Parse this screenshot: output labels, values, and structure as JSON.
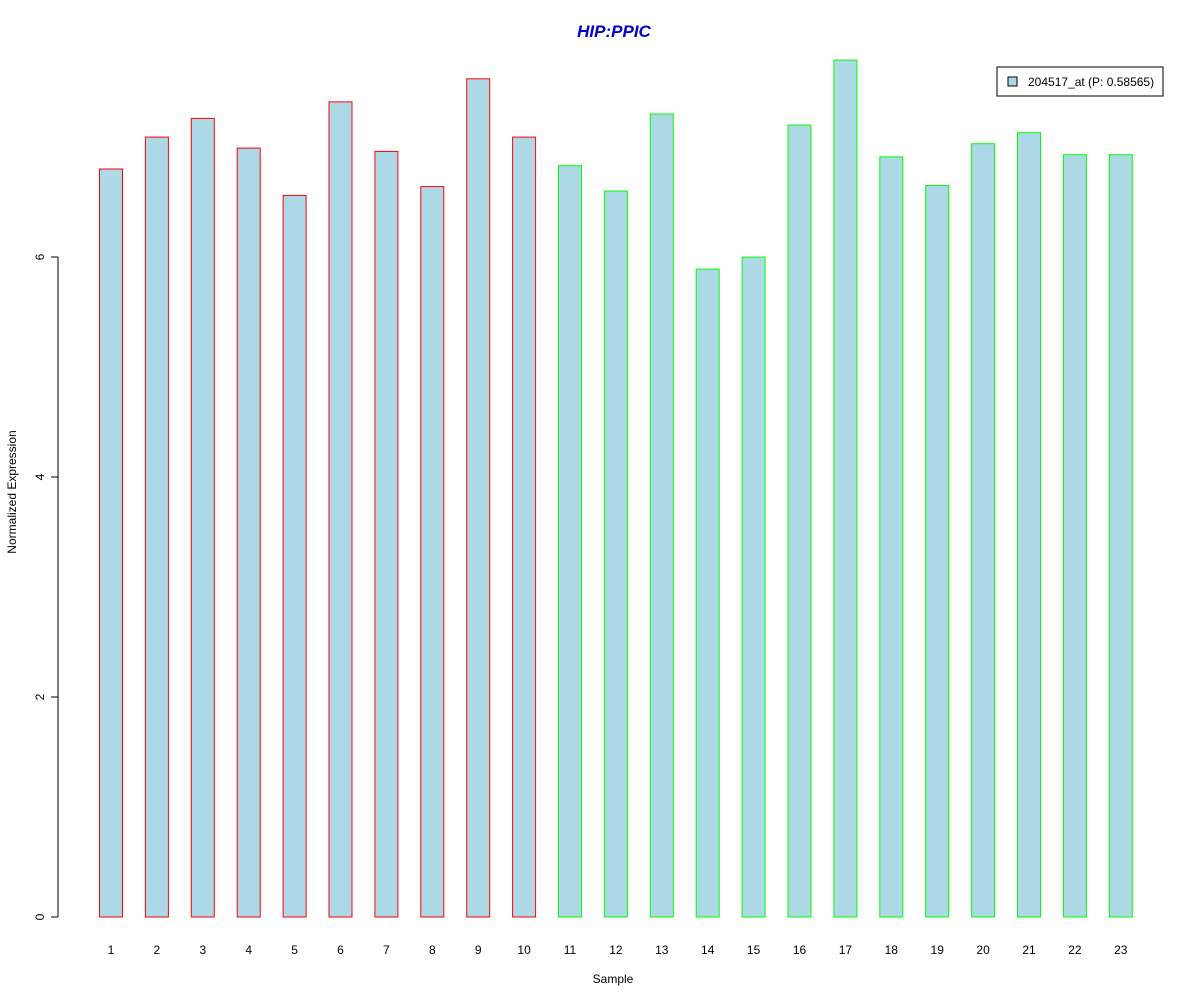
{
  "chart_data": {
    "type": "bar",
    "title": "HIP:PPIC",
    "xlabel": "Sample",
    "ylabel": "Normalized Expression",
    "categories": [
      "1",
      "2",
      "3",
      "4",
      "5",
      "6",
      "7",
      "8",
      "9",
      "10",
      "11",
      "12",
      "13",
      "14",
      "15",
      "16",
      "17",
      "18",
      "19",
      "20",
      "21",
      "22",
      "23"
    ],
    "series": [
      {
        "name": "204517_at (P: 0.58565)",
        "values": [
          6.8,
          7.09,
          7.26,
          6.99,
          6.56,
          7.41,
          6.96,
          6.64,
          7.62,
          7.09,
          6.83,
          6.6,
          7.3,
          5.89,
          6.0,
          7.2,
          7.79,
          6.91,
          6.65,
          7.03,
          7.13,
          6.93,
          6.93
        ]
      }
    ],
    "bar_outline_colors": [
      "#ff0000",
      "#ff0000",
      "#ff0000",
      "#ff0000",
      "#ff0000",
      "#ff0000",
      "#ff0000",
      "#ff0000",
      "#ff0000",
      "#ff0000",
      "#00ff00",
      "#00ff00",
      "#00ff00",
      "#00ff00",
      "#00ff00",
      "#00ff00",
      "#00ff00",
      "#00ff00",
      "#00ff00",
      "#00ff00",
      "#00ff00",
      "#00ff00",
      "#00ff00"
    ],
    "bar_fill_color": "#add8e6",
    "title_color": "#0000cd",
    "yticks": [
      0,
      2,
      4,
      6
    ],
    "ylim": [
      0,
      7.8
    ],
    "grid": false,
    "legend_position": "top-right"
  }
}
